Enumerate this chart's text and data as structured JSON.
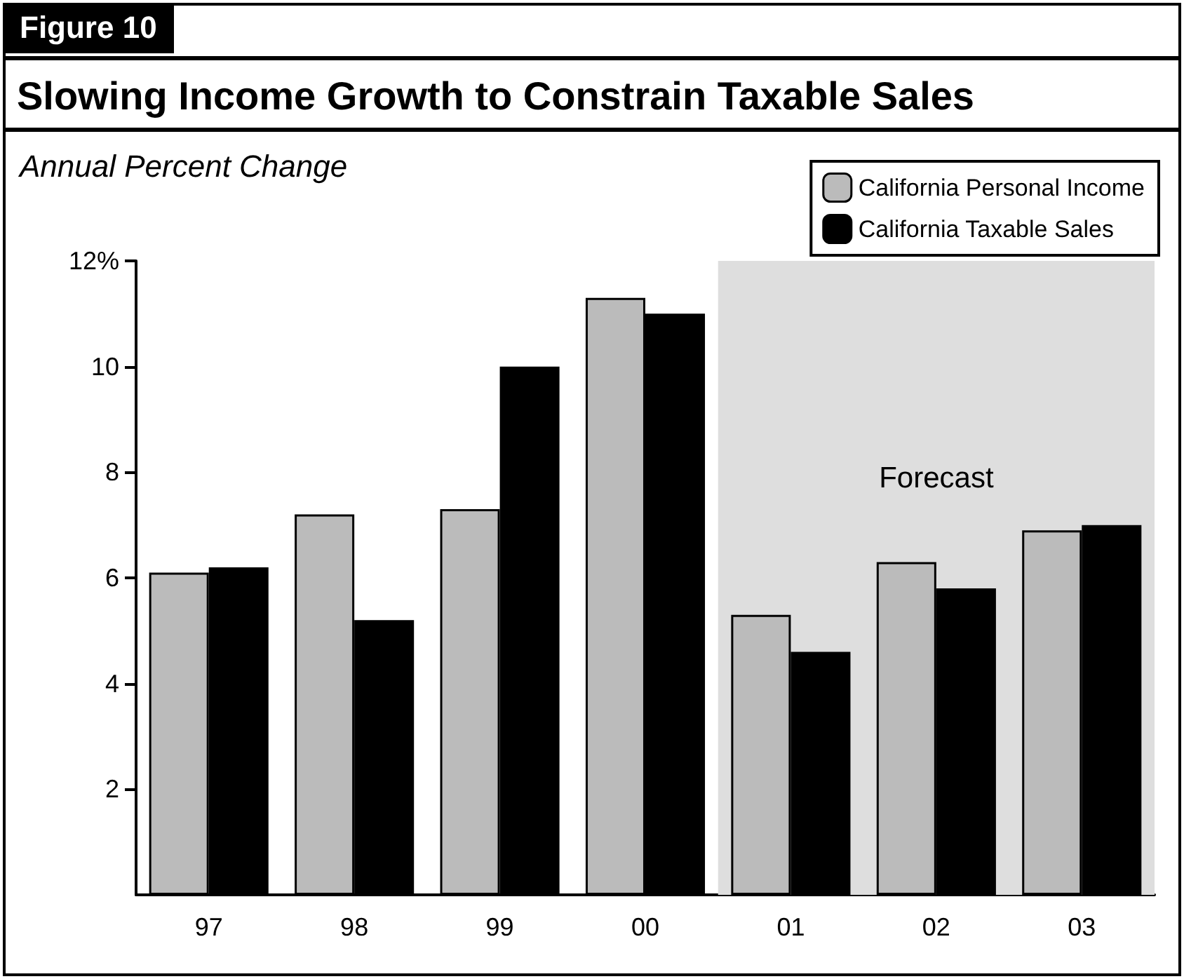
{
  "chart_data": {
    "type": "bar",
    "title": "Slowing Income Growth to Constrain Taxable Sales",
    "ylabel": "Annual Percent Change",
    "annotations": [
      "Figure 10"
    ],
    "categories": [
      "97",
      "98",
      "99",
      "00",
      "01",
      "02",
      "03"
    ],
    "series": [
      {
        "name": "California Personal Income",
        "color": "#bbbbbb",
        "values": [
          6.1,
          7.2,
          7.3,
          11.3,
          5.3,
          6.3,
          6.9
        ]
      },
      {
        "name": "California Taxable Sales",
        "color": "#000000",
        "values": [
          6.2,
          5.2,
          10.0,
          11.0,
          4.6,
          5.8,
          7.0
        ]
      }
    ],
    "ylim": [
      0,
      12
    ],
    "yticks": [
      2,
      4,
      6,
      8,
      10,
      {
        "value": 12,
        "label": "12%"
      }
    ],
    "bands": [
      {
        "axis": "x",
        "from": "01",
        "to": "03",
        "label": "Forecast",
        "color": "#dedede"
      }
    ],
    "grid": false,
    "legend": "top right"
  }
}
